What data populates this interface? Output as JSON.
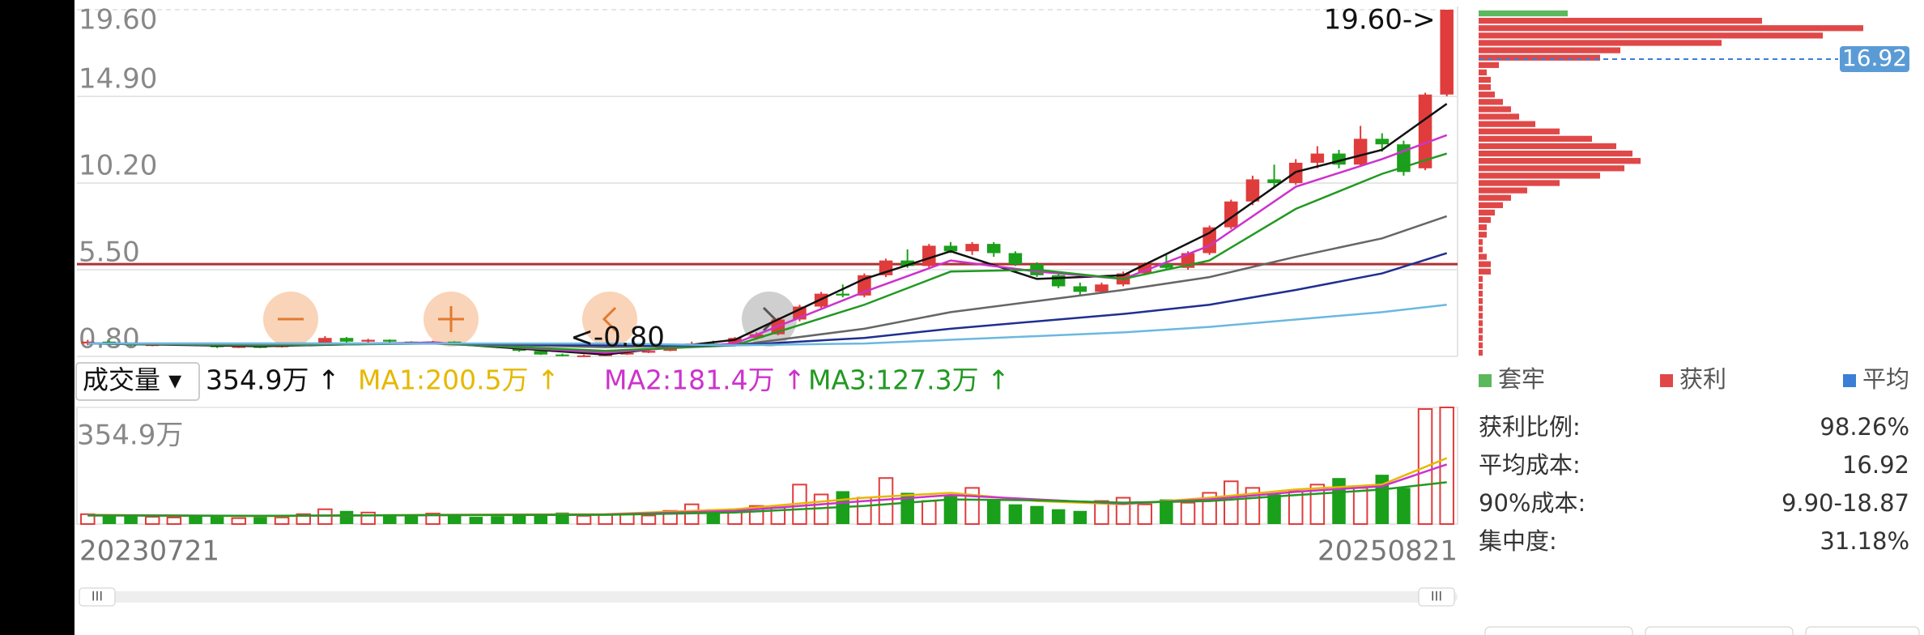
{
  "chart_data": {
    "type": "candlestick",
    "ylim": [
      0.8,
      19.6
    ],
    "yticks": [
      {
        "value": 0.8,
        "label": "0.80"
      },
      {
        "value": 5.5,
        "label": "5.50"
      },
      {
        "value": 10.2,
        "label": "10.20"
      },
      {
        "value": 14.9,
        "label": "14.90"
      },
      {
        "value": 19.6,
        "label": "19.60"
      }
    ],
    "up_color": "#e03c3c",
    "down_color": "#1aa01a",
    "candles": [
      [
        1.5,
        1.7,
        1.4,
        1.6
      ],
      [
        1.6,
        1.65,
        1.45,
        1.5
      ],
      [
        1.5,
        1.55,
        1.35,
        1.4
      ],
      [
        1.4,
        1.5,
        1.35,
        1.45
      ],
      [
        1.45,
        1.55,
        1.4,
        1.5
      ],
      [
        1.5,
        1.52,
        1.35,
        1.4
      ],
      [
        1.4,
        1.45,
        1.25,
        1.3
      ],
      [
        1.3,
        1.4,
        1.25,
        1.35
      ],
      [
        1.35,
        1.4,
        1.25,
        1.3
      ],
      [
        1.3,
        1.45,
        1.28,
        1.4
      ],
      [
        1.4,
        1.55,
        1.35,
        1.5
      ],
      [
        1.5,
        1.9,
        1.45,
        1.8
      ],
      [
        1.8,
        1.85,
        1.55,
        1.6
      ],
      [
        1.6,
        1.75,
        1.55,
        1.7
      ],
      [
        1.7,
        1.72,
        1.55,
        1.6
      ],
      [
        1.6,
        1.62,
        1.45,
        1.5
      ],
      [
        1.5,
        1.65,
        1.45,
        1.6
      ],
      [
        1.6,
        1.62,
        1.45,
        1.5
      ],
      [
        1.5,
        1.52,
        1.35,
        1.4
      ],
      [
        1.4,
        1.42,
        1.25,
        1.3
      ],
      [
        1.3,
        1.32,
        1.05,
        1.1
      ],
      [
        1.1,
        1.12,
        0.88,
        0.9
      ],
      [
        0.9,
        0.95,
        0.8,
        0.82
      ],
      [
        0.82,
        0.9,
        0.8,
        0.85
      ],
      [
        0.85,
        0.95,
        0.82,
        0.9
      ],
      [
        0.9,
        1.05,
        0.88,
        1.0
      ],
      [
        1.0,
        1.15,
        0.98,
        1.1
      ],
      [
        1.1,
        1.35,
        1.08,
        1.3
      ],
      [
        1.3,
        1.6,
        1.28,
        1.5
      ],
      [
        1.5,
        1.65,
        1.4,
        1.45
      ],
      [
        1.45,
        1.85,
        1.42,
        1.8
      ],
      [
        1.8,
        2.1,
        1.7,
        2.0
      ],
      [
        2.0,
        2.9,
        1.95,
        2.8
      ],
      [
        2.8,
        3.6,
        2.7,
        3.5
      ],
      [
        3.5,
        4.3,
        3.4,
        4.2
      ],
      [
        4.2,
        4.7,
        4.0,
        4.1
      ],
      [
        4.1,
        5.3,
        4.0,
        5.2
      ],
      [
        5.2,
        6.1,
        5.1,
        6.0
      ],
      [
        6.0,
        6.6,
        5.6,
        5.7
      ],
      [
        5.7,
        6.9,
        5.6,
        6.8
      ],
      [
        6.8,
        7.0,
        6.4,
        6.5
      ],
      [
        6.5,
        7.0,
        6.3,
        6.9
      ],
      [
        6.9,
        7.0,
        6.2,
        6.4
      ],
      [
        6.4,
        6.5,
        5.7,
        5.8
      ],
      [
        5.8,
        5.9,
        5.1,
        5.2
      ],
      [
        5.2,
        5.3,
        4.5,
        4.6
      ],
      [
        4.6,
        4.8,
        4.1,
        4.3
      ],
      [
        4.3,
        4.8,
        4.2,
        4.7
      ],
      [
        4.7,
        5.4,
        4.6,
        5.3
      ],
      [
        5.3,
        5.9,
        5.2,
        5.8
      ],
      [
        5.8,
        6.3,
        5.5,
        5.6
      ],
      [
        5.6,
        6.5,
        5.5,
        6.4
      ],
      [
        6.4,
        7.9,
        6.3,
        7.8
      ],
      [
        7.8,
        9.3,
        7.7,
        9.2
      ],
      [
        9.2,
        10.6,
        9.0,
        10.4
      ],
      [
        10.4,
        11.2,
        10.0,
        10.2
      ],
      [
        10.2,
        11.5,
        10.1,
        11.3
      ],
      [
        11.3,
        12.2,
        11.0,
        11.8
      ],
      [
        11.8,
        12.0,
        11.0,
        11.2
      ],
      [
        11.2,
        13.3,
        11.1,
        12.6
      ],
      [
        12.6,
        12.9,
        11.9,
        12.3
      ],
      [
        12.3,
        12.5,
        10.6,
        10.8
      ],
      [
        11.0,
        15.1,
        10.9,
        15.0
      ],
      [
        15.0,
        19.6,
        14.9,
        19.6
      ]
    ],
    "ma_lines": [
      {
        "color": "#111111",
        "x": [
          0,
          8,
          16,
          24,
          30,
          36,
          40,
          44,
          48,
          52,
          56,
          60,
          63
        ],
        "values": [
          1.5,
          1.35,
          1.55,
          0.9,
          1.7,
          5.0,
          6.5,
          5.0,
          5.2,
          7.5,
          10.8,
          12.0,
          14.5
        ]
      },
      {
        "color": "#cc33cc",
        "x": [
          0,
          8,
          16,
          24,
          30,
          36,
          40,
          44,
          48,
          52,
          56,
          60,
          63
        ],
        "values": [
          1.5,
          1.4,
          1.55,
          1.0,
          1.5,
          4.3,
          6.0,
          5.4,
          5.0,
          6.8,
          10.0,
          11.5,
          12.8
        ]
      },
      {
        "color": "#229922",
        "x": [
          0,
          8,
          16,
          24,
          30,
          36,
          40,
          44,
          48,
          52,
          56,
          60,
          63
        ],
        "values": [
          1.5,
          1.4,
          1.5,
          1.1,
          1.4,
          3.6,
          5.4,
          5.5,
          5.0,
          6.0,
          8.8,
          10.7,
          11.8
        ]
      },
      {
        "color": "#666666",
        "x": [
          0,
          8,
          16,
          24,
          30,
          36,
          40,
          44,
          48,
          52,
          56,
          60,
          63
        ],
        "values": [
          1.5,
          1.45,
          1.5,
          1.3,
          1.4,
          2.3,
          3.2,
          3.8,
          4.4,
          5.1,
          6.2,
          7.2,
          8.4
        ]
      },
      {
        "color": "#1f2f8f",
        "x": [
          0,
          8,
          16,
          24,
          30,
          36,
          40,
          44,
          48,
          52,
          56,
          60,
          63
        ],
        "values": [
          1.5,
          1.5,
          1.5,
          1.4,
          1.4,
          1.8,
          2.3,
          2.7,
          3.1,
          3.6,
          4.4,
          5.3,
          6.4
        ]
      },
      {
        "color": "#6bb8e0",
        "x": [
          0,
          8,
          16,
          24,
          30,
          36,
          40,
          44,
          48,
          52,
          56,
          60,
          63
        ],
        "values": [
          1.5,
          1.5,
          1.5,
          1.5,
          1.4,
          1.5,
          1.7,
          1.9,
          2.1,
          2.4,
          2.8,
          3.2,
          3.6
        ]
      }
    ],
    "ref_line": {
      "value": 5.8,
      "color": "#b03030"
    },
    "annotations": {
      "high": "19.60->",
      "low": "<-0.80"
    },
    "volume": {
      "selector": "成交量 ▾",
      "legend": [
        {
          "text": "354.9万 ↑",
          "color": "#111111"
        },
        {
          "text": "MA1:200.5万 ↑",
          "color": "#e6b800"
        },
        {
          "text": "MA2:181.4万 ↑",
          "color": "#cc33cc"
        },
        {
          "text": "MA3:127.3万 ↑",
          "color": "#229922"
        }
      ],
      "ylim": [
        0,
        354.9
      ],
      "yticks": [
        {
          "value": 354.9,
          "label": "354.9万"
        }
      ],
      "values": [
        30,
        25,
        28,
        22,
        20,
        26,
        24,
        18,
        22,
        20,
        30,
        45,
        40,
        35,
        30,
        28,
        32,
        26,
        22,
        24,
        28,
        30,
        35,
        25,
        28,
        32,
        26,
        40,
        60,
        45,
        42,
        55,
        50,
        120,
        90,
        100,
        80,
        140,
        95,
        70,
        85,
        110,
        75,
        60,
        55,
        45,
        40,
        70,
        80,
        60,
        75,
        65,
        95,
        130,
        110,
        90,
        100,
        120,
        140,
        110,
        150,
        110,
        350,
        354.9
      ],
      "ma_lines": [
        {
          "color": "#e6b800",
          "x": [
            0,
            8,
            16,
            24,
            30,
            36,
            40,
            44,
            48,
            52,
            56,
            60,
            63
          ],
          "values": [
            28,
            24,
            28,
            30,
            45,
            80,
            95,
            70,
            60,
            80,
            105,
            120,
            200.5
          ]
        },
        {
          "color": "#cc33cc",
          "x": [
            0,
            8,
            16,
            24,
            30,
            36,
            40,
            44,
            48,
            52,
            56,
            60,
            63
          ],
          "values": [
            27,
            25,
            27,
            29,
            40,
            70,
            88,
            75,
            62,
            75,
            98,
            115,
            181.4
          ]
        },
        {
          "color": "#229922",
          "x": [
            0,
            8,
            16,
            24,
            30,
            36,
            40,
            44,
            48,
            52,
            56,
            60,
            63
          ],
          "values": [
            26,
            25,
            27,
            28,
            35,
            55,
            75,
            72,
            65,
            70,
            88,
            105,
            127.3
          ]
        }
      ]
    },
    "dates": [
      "20230721",
      "20250821"
    ],
    "chips": {
      "prices": [
        19.4,
        19.0,
        18.6,
        18.2,
        17.8,
        17.4,
        17.0,
        16.6,
        16.2,
        15.8,
        15.4,
        15.0,
        14.6,
        14.2,
        13.8,
        13.4,
        13.0,
        12.6,
        12.2,
        11.8,
        11.4,
        11.0,
        10.6,
        10.2,
        9.8,
        9.4,
        9.0,
        8.6,
        8.2,
        7.8,
        7.4,
        7.0,
        6.6,
        6.2,
        5.8,
        5.4,
        5.0,
        4.6,
        4.2,
        3.8,
        3.4,
        3.0,
        2.6,
        2.2,
        1.8,
        1.4,
        1.0
      ],
      "series": [
        {
          "name": "套牢",
          "color": "#5cb85c",
          "values": [
            22,
            null,
            null,
            null,
            null,
            null,
            null,
            null,
            null,
            null,
            null,
            null,
            null,
            null,
            null,
            null,
            null,
            null,
            null,
            null,
            null,
            null,
            null,
            null,
            null,
            null,
            null,
            null,
            null,
            null,
            null,
            null,
            null,
            null,
            null,
            null,
            null,
            null,
            null,
            null,
            null,
            null,
            null,
            null,
            null,
            null,
            null
          ]
        },
        {
          "name": "获利",
          "color": "#e04848",
          "values": [
            null,
            70,
            95,
            85,
            60,
            35,
            30,
            5,
            2,
            3,
            3,
            4,
            6,
            8,
            10,
            14,
            20,
            28,
            34,
            38,
            40,
            36,
            30,
            20,
            12,
            8,
            6,
            4,
            3,
            2,
            2,
            1,
            1,
            2,
            3,
            3,
            1,
            1,
            1,
            1,
            1,
            1,
            1,
            1,
            1,
            1,
            1
          ]
        }
      ],
      "avg": {
        "name": "平均",
        "color": "#3a7fd5",
        "value": 16.92
      }
    },
    "stats": [
      [
        "获利比例:",
        "98.26%"
      ],
      [
        "平均成本:",
        "16.92"
      ],
      [
        "90%成本:",
        "9.90-18.87"
      ],
      [
        "集中度:",
        "31.18%"
      ]
    ]
  }
}
